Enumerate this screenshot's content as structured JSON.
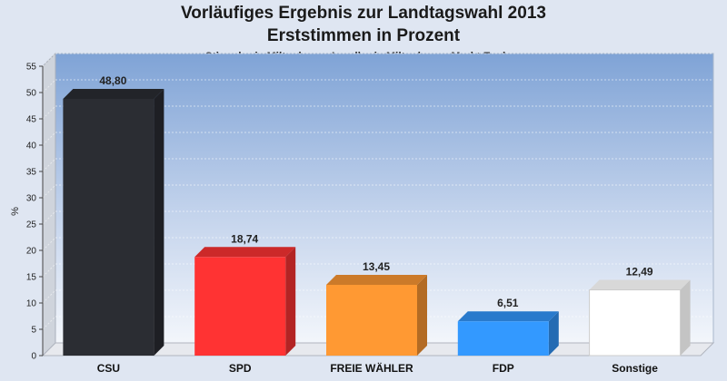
{
  "chart_data": {
    "type": "bar",
    "title": "Vorläufiges Ergebnis zur Landtagswahl 2013",
    "subtitle": "Erststimmen in Prozent",
    "subtitle2": "Stimmkreis Miltenberg - Landkreis Miltenberg - Markt Eschau",
    "ylabel": "%",
    "ylim": [
      0,
      55
    ],
    "yticks": [
      0,
      5,
      10,
      15,
      20,
      25,
      30,
      35,
      40,
      45,
      50,
      55
    ],
    "categories": [
      "CSU",
      "SPD",
      "FREIE WÄHLER",
      "FDP",
      "Sonstige"
    ],
    "values": [
      48.8,
      18.74,
      13.45,
      6.51,
      12.49
    ],
    "value_labels": [
      "48,80",
      "18,74",
      "13,45",
      "6,51",
      "12,49"
    ],
    "colors": [
      "#2b2d33",
      "#ff3333",
      "#ff9933",
      "#3399ff",
      "#ffffff"
    ],
    "grid": true
  }
}
